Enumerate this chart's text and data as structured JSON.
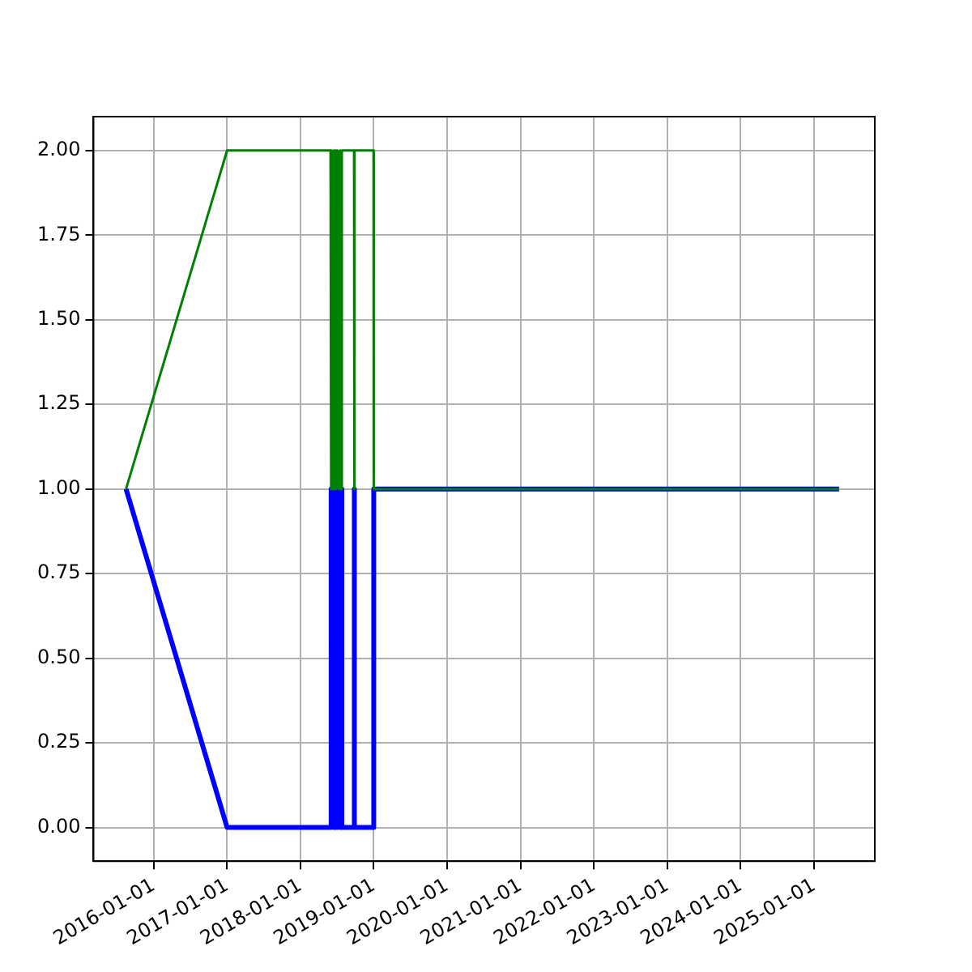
{
  "chart_data": {
    "type": "line",
    "x": [
      "2015-08-17",
      "2017-01-01",
      "2018-05-31",
      "2018-06-01",
      "2018-06-05",
      "2018-06-09",
      "2018-06-14",
      "2018-06-19",
      "2018-06-24",
      "2018-06-29",
      "2018-07-05",
      "2018-07-11",
      "2018-07-17",
      "2018-07-22",
      "2018-07-26",
      "2018-09-25",
      "2018-09-26",
      "2018-09-27",
      "2018-12-31",
      "2019-01-01",
      "2025-05-05"
    ],
    "series": [
      {
        "color": "#0000ff",
        "values": [
          1,
          0,
          0,
          1,
          0,
          1,
          0,
          1,
          0,
          1,
          0,
          1,
          0,
          1,
          0,
          0,
          1,
          0,
          0,
          1,
          1
        ]
      },
      {
        "color": "#008000",
        "values": [
          1,
          2,
          2,
          1,
          2,
          1,
          2,
          1,
          2,
          1,
          2,
          1,
          2,
          1,
          2,
          2,
          1,
          2,
          2,
          1,
          1
        ]
      }
    ],
    "xlim": [
      "2015-03-08",
      "2025-10-30"
    ],
    "xticks": [
      "2016-01-01",
      "2017-01-01",
      "2018-01-01",
      "2019-01-01",
      "2020-01-01",
      "2021-01-01",
      "2022-01-01",
      "2023-01-01",
      "2024-01-01",
      "2025-01-01"
    ],
    "ylim": [
      -0.1,
      2.1
    ],
    "yticks": [
      {
        "value": 0,
        "label": "0.00"
      },
      {
        "value": 0.25,
        "label": "0.25"
      },
      {
        "value": 0.5,
        "label": "0.50"
      },
      {
        "value": 0.75,
        "label": "0.75"
      },
      {
        "value": 1,
        "label": "1.00"
      },
      {
        "value": 1.25,
        "label": "1.25"
      },
      {
        "value": 1.5,
        "label": "1.50"
      },
      {
        "value": 1.75,
        "label": "1.75"
      },
      {
        "value": 2,
        "label": "2.00"
      }
    ],
    "grid": true,
    "legend": false,
    "marker": "none",
    "line_style": "solid"
  }
}
